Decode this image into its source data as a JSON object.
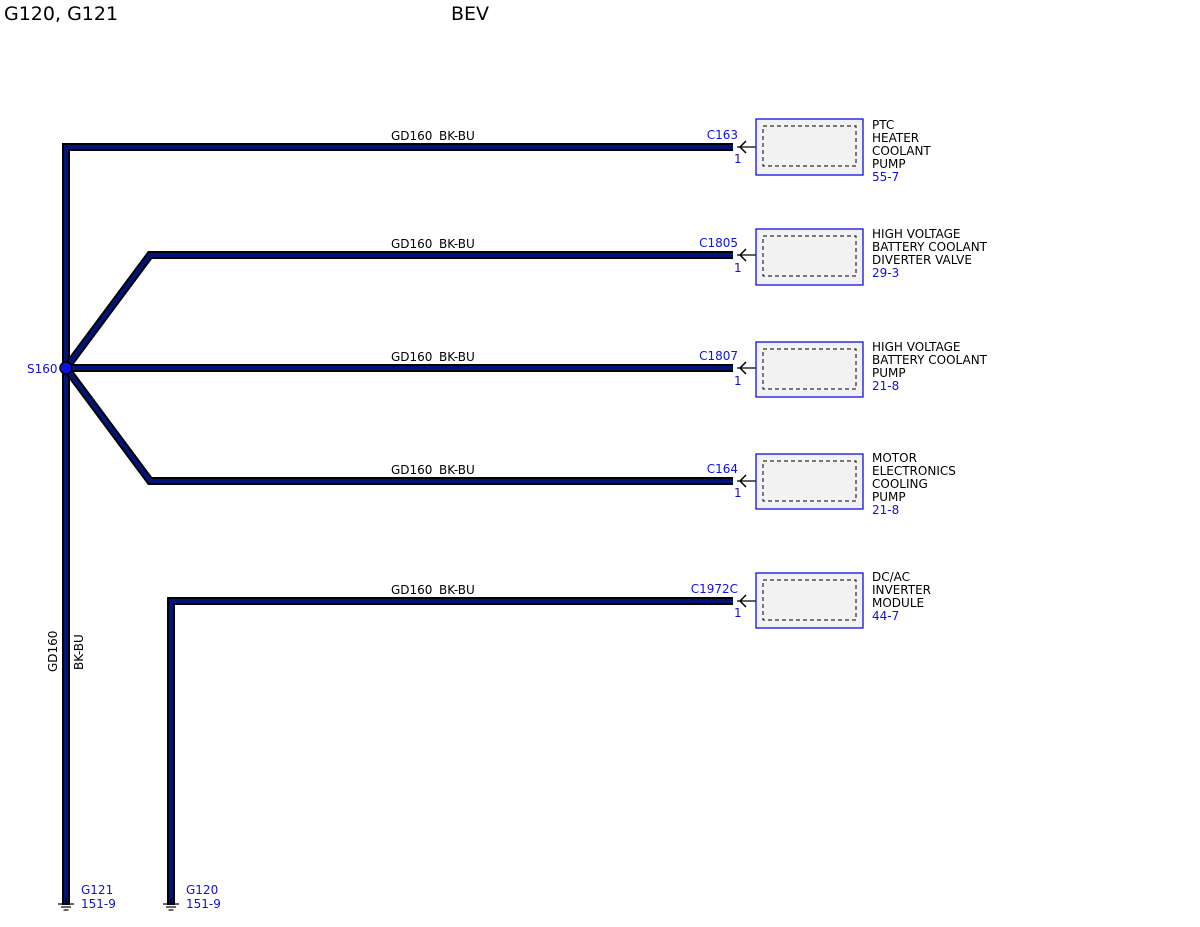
{
  "header": {
    "title": "G120, G121",
    "variant": "BEV"
  },
  "splice": {
    "id": "S160"
  },
  "trunk_wire": {
    "circuit": "GD160",
    "color": "BK-BU"
  },
  "branches": [
    {
      "circuit": "GD160",
      "color": "BK-BU",
      "connector": "C163",
      "pin": "1",
      "component_lines": [
        "PTC",
        "HEATER",
        "COOLANT",
        "PUMP"
      ],
      "page_ref": "55-7"
    },
    {
      "circuit": "GD160",
      "color": "BK-BU",
      "connector": "C1805",
      "pin": "1",
      "component_lines": [
        "HIGH VOLTAGE",
        "BATTERY COOLANT",
        "DIVERTER VALVE"
      ],
      "page_ref": "29-3"
    },
    {
      "circuit": "GD160",
      "color": "BK-BU",
      "connector": "C1807",
      "pin": "1",
      "component_lines": [
        "HIGH VOLTAGE",
        "BATTERY COOLANT",
        "PUMP"
      ],
      "page_ref": "21-8"
    },
    {
      "circuit": "GD160",
      "color": "BK-BU",
      "connector": "C164",
      "pin": "1",
      "component_lines": [
        "MOTOR",
        "ELECTRONICS",
        "COOLING",
        "PUMP"
      ],
      "page_ref": "21-8"
    },
    {
      "circuit": "GD160",
      "color": "BK-BU",
      "connector": "C1972C",
      "pin": "1",
      "component_lines": [
        "DC/AC",
        "INVERTER",
        "MODULE"
      ],
      "page_ref": "44-7"
    }
  ],
  "grounds": [
    {
      "id": "G121",
      "page_ref": "151-9"
    },
    {
      "id": "G120",
      "page_ref": "151-9"
    }
  ],
  "colors": {
    "wire_fill": "#00147a",
    "label_blue": "#1010e0",
    "component_fill": "#f2f2f2"
  }
}
